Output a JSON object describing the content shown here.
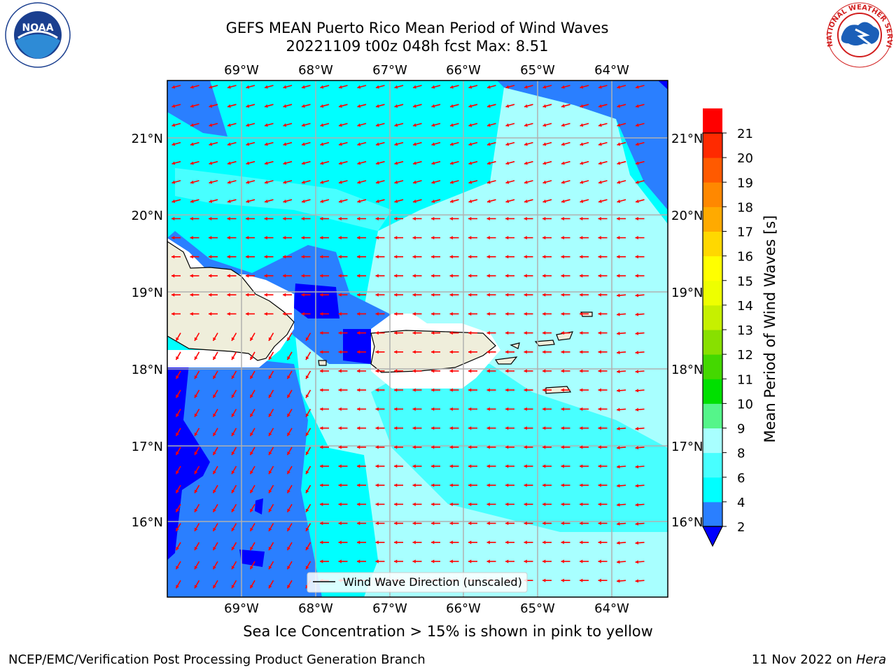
{
  "title": {
    "line1": "GEFS MEAN Puerto Rico Mean Period of Wind Waves",
    "line2": "20221109 t00z 048h fcst   Max: 8.51"
  },
  "map": {
    "lon_labels": [
      "69°W",
      "68°W",
      "67°W",
      "66°W",
      "65°W",
      "64°W"
    ],
    "lat_labels": [
      "21°N",
      "20°N",
      "19°N",
      "18°N",
      "17°N",
      "16°N"
    ],
    "legend_label": "Wind Wave Direction (unscaled)",
    "land_color": "#efeedb",
    "vector_color": "#ff0000",
    "shade_colors": [
      "#0000ff",
      "#2a7fff",
      "#00ffff",
      "#48ffff",
      "#a8ffff"
    ]
  },
  "colorbar": {
    "label": "Mean Period of Wind Waves [s]",
    "ticks": [
      "2",
      "4",
      "6",
      "8",
      "9",
      "10",
      "11",
      "12",
      "13",
      "14",
      "15",
      "16",
      "17",
      "18",
      "19",
      "20",
      "21"
    ],
    "colors": [
      "#2a7fff",
      "#00ffff",
      "#48ffff",
      "#a8ffff",
      "#55f58a",
      "#00e000",
      "#44d800",
      "#88e000",
      "#c6f000",
      "#eeff00",
      "#ffff00",
      "#ffd800",
      "#ffaa00",
      "#ff8800",
      "#ff5a00",
      "#ff2a00",
      "#ff0000"
    ],
    "under_color": "#0000ff"
  },
  "caption": "Sea Ice Concentration > 15% is shown in pink to yellow",
  "footer": {
    "left": "NCEP/EMC/Verification Post Processing Product Generation Branch",
    "right_prefix": "11 Nov 2022 on ",
    "right_host": "Hera"
  },
  "logos": {
    "noaa": "NOAA",
    "nws": "NATIONAL WEATHER SERVICE"
  }
}
